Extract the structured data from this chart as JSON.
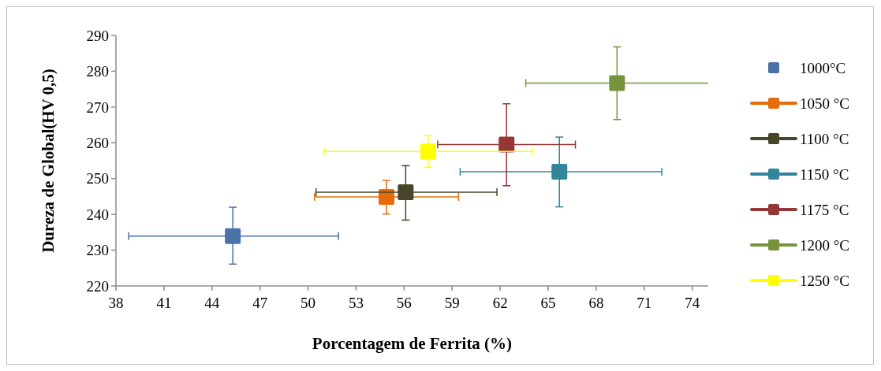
{
  "chart_data": {
    "type": "scatter",
    "xlabel": "Porcentagem de Ferrita (%)",
    "ylabel": "Dureza de Global(HV 0,5)",
    "xlim": [
      38,
      75
    ],
    "xticks": [
      38,
      41,
      44,
      47,
      50,
      53,
      56,
      59,
      62,
      65,
      68,
      71,
      74
    ],
    "ylim": [
      220,
      290
    ],
    "yticks": [
      220,
      230,
      240,
      250,
      260,
      270,
      280,
      290
    ],
    "marker": "square",
    "legend": "right",
    "grid": false,
    "series": [
      {
        "name": "1000°C",
        "color": "#4a72a8",
        "x": [
          45.3
        ],
        "values": [
          233.9
        ],
        "errors": [
          [
            226.1,
            242.0
          ]
        ],
        "xerrors": [
          [
            38.8,
            51.9
          ]
        ]
      },
      {
        "name": "1050 °C",
        "color": "#e46c0a",
        "x": [
          54.9
        ],
        "values": [
          244.9
        ],
        "errors": [
          [
            240.1,
            249.5
          ]
        ],
        "xerrors": [
          [
            50.4,
            59.4
          ]
        ]
      },
      {
        "name": "1100 °C",
        "color": "#4a452a",
        "x": [
          56.1
        ],
        "values": [
          246.2
        ],
        "errors": [
          [
            238.4,
            253.6
          ]
        ],
        "xerrors": [
          [
            50.5,
            61.8
          ]
        ]
      },
      {
        "name": "1150 °C",
        "color": "#31859c",
        "x": [
          65.7
        ],
        "values": [
          251.9
        ],
        "errors": [
          [
            242.1,
            261.6
          ]
        ],
        "xerrors": [
          [
            59.5,
            72.1
          ]
        ]
      },
      {
        "name": "1175 °C",
        "color": "#953735",
        "x": [
          62.4
        ],
        "values": [
          259.5
        ],
        "errors": [
          [
            248.0,
            270.9
          ]
        ],
        "xerrors": [
          [
            58.1,
            66.7
          ]
        ]
      },
      {
        "name": "1200 °C",
        "color": "#77933c",
        "x": [
          69.3
        ],
        "values": [
          276.7
        ],
        "errors": [
          [
            266.5,
            286.8
          ]
        ],
        "xerrors": [
          [
            63.6,
            75.0
          ]
        ]
      },
      {
        "name": "1250 °C",
        "color": "#ffff00",
        "x": [
          57.5
        ],
        "values": [
          257.6
        ],
        "errors": [
          [
            253.2,
            262.0
          ]
        ],
        "xerrors": [
          [
            51.0,
            64.0
          ]
        ]
      }
    ]
  }
}
